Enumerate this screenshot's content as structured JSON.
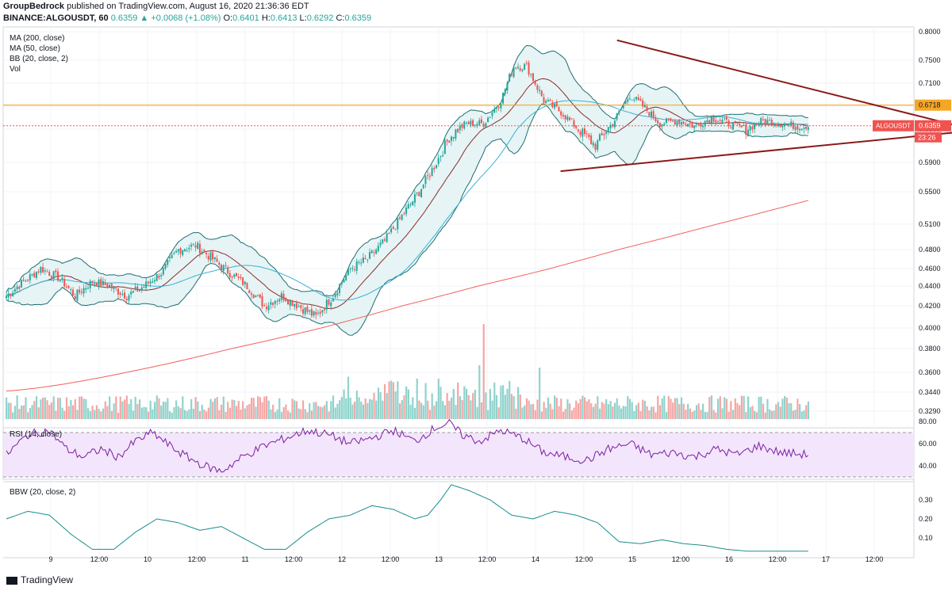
{
  "header": {
    "author": "GroupBedrock",
    "published_text": "published on TradingView.com, August 16, 2020 21:36:36 EDT",
    "symbol": "BINANCE:ALGOUSDT, 60",
    "last": "0.6359",
    "change": "▲ +0.0068 (+1.08%)",
    "o_label": "O:",
    "o_value": "0.6401",
    "h_label": "H:",
    "h_value": "0.6413",
    "l_label": "L:",
    "l_value": "0.6292",
    "c_label": "C:",
    "c_value": "0.6359"
  },
  "legend": [
    "MA (200, close)",
    "MA (50, close)",
    "BB (20, close, 2)",
    "Vol"
  ],
  "rsi_label": "RSI (14, close)",
  "bbw_label": "BBW (20, close, 2)",
  "footer": {
    "brand": "TradingView"
  },
  "colors": {
    "up": "#26a69a",
    "down": "#ef5350",
    "ma200": "#f0605a",
    "ma50": "#3bb0d6",
    "bb_basis": "#8e2b2b",
    "bb_band": "#1e6e72",
    "bb_fill": "#e6f4f5",
    "trend": "#8b1a1a",
    "resistance": "#f5a623",
    "rsi_fill": "#f3e5fb",
    "rsi_line": "#7b1fa2",
    "bbw_line": "#1a8c8c",
    "price_tag": "#ef5350"
  },
  "chart_data": {
    "type": "candlestick",
    "symbol": "ALGOUSDT",
    "interval": "60",
    "x_labels": [
      "9",
      "12:00",
      "10",
      "12:00",
      "11",
      "12:00",
      "12",
      "12:00",
      "13",
      "12:00",
      "14",
      "12:00",
      "15",
      "12:00",
      "16",
      "12:00",
      "17",
      "12:00"
    ],
    "price_scale_ticks": [
      "0.8000",
      "0.7500",
      "0.7100",
      "0.6700",
      "0.6300",
      "0.5900",
      "0.5500",
      "0.5100",
      "0.4800",
      "0.4600",
      "0.4400",
      "0.4200",
      "0.4000",
      "0.3800",
      "0.3600",
      "0.3440",
      "0.3290"
    ],
    "price_scale_values": [
      0.8,
      0.75,
      0.71,
      0.67,
      0.63,
      0.59,
      0.55,
      0.51,
      0.48,
      0.46,
      0.44,
      0.42,
      0.4,
      0.38,
      0.36,
      0.344,
      0.329
    ],
    "horizontal_line": {
      "label": "0.6718",
      "value": 0.6718
    },
    "last_price": {
      "symbol_label": "ALGOUSDT",
      "value_label": "0.6359",
      "value": 0.6359,
      "countdown": "23:26"
    },
    "close_anchors": [
      [
        0,
        0.43
      ],
      [
        8,
        0.445
      ],
      [
        16,
        0.46
      ],
      [
        24,
        0.45
      ],
      [
        32,
        0.43
      ],
      [
        40,
        0.445
      ],
      [
        48,
        0.44
      ],
      [
        56,
        0.43
      ],
      [
        64,
        0.44
      ],
      [
        72,
        0.455
      ],
      [
        80,
        0.48
      ],
      [
        88,
        0.485
      ],
      [
        96,
        0.47
      ],
      [
        104,
        0.455
      ],
      [
        112,
        0.44
      ],
      [
        120,
        0.42
      ],
      [
        128,
        0.43
      ],
      [
        136,
        0.42
      ],
      [
        144,
        0.41
      ],
      [
        152,
        0.43
      ],
      [
        160,
        0.46
      ],
      [
        168,
        0.47
      ],
      [
        176,
        0.49
      ],
      [
        184,
        0.52
      ],
      [
        192,
        0.55
      ],
      [
        200,
        0.59
      ],
      [
        206,
        0.62
      ],
      [
        214,
        0.64
      ],
      [
        222,
        0.64
      ],
      [
        230,
        0.68
      ],
      [
        236,
        0.74
      ],
      [
        242,
        0.74
      ],
      [
        250,
        0.68
      ],
      [
        258,
        0.66
      ],
      [
        266,
        0.63
      ],
      [
        274,
        0.61
      ],
      [
        282,
        0.64
      ],
      [
        290,
        0.69
      ],
      [
        296,
        0.67
      ],
      [
        304,
        0.64
      ],
      [
        312,
        0.645
      ],
      [
        320,
        0.635
      ],
      [
        328,
        0.65
      ],
      [
        336,
        0.64
      ],
      [
        344,
        0.63
      ],
      [
        352,
        0.645
      ],
      [
        360,
        0.64
      ],
      [
        368,
        0.635
      ],
      [
        373,
        0.636
      ]
    ],
    "trendline_upper": [
      [
        0.674,
        0.785
      ],
      [
        1.045,
        0.637
      ]
    ],
    "trendline_lower": [
      [
        0.612,
        0.578
      ],
      [
        1.045,
        0.626
      ]
    ],
    "rsi": {
      "ticks": [
        "80.00",
        "60.00",
        "40.00"
      ],
      "values": [
        80,
        60,
        40
      ],
      "upper": 70,
      "lower": 30,
      "anchors": [
        [
          0,
          50
        ],
        [
          10,
          68
        ],
        [
          20,
          72
        ],
        [
          28,
          55
        ],
        [
          36,
          48
        ],
        [
          44,
          55
        ],
        [
          52,
          48
        ],
        [
          60,
          62
        ],
        [
          68,
          70
        ],
        [
          76,
          58
        ],
        [
          84,
          48
        ],
        [
          92,
          40
        ],
        [
          100,
          35
        ],
        [
          110,
          48
        ],
        [
          120,
          58
        ],
        [
          130,
          65
        ],
        [
          140,
          72
        ],
        [
          150,
          68
        ],
        [
          160,
          60
        ],
        [
          170,
          65
        ],
        [
          180,
          72
        ],
        [
          190,
          62
        ],
        [
          200,
          75
        ],
        [
          206,
          78
        ],
        [
          212,
          68
        ],
        [
          220,
          62
        ],
        [
          230,
          72
        ],
        [
          240,
          65
        ],
        [
          250,
          52
        ],
        [
          260,
          48
        ],
        [
          270,
          45
        ],
        [
          280,
          55
        ],
        [
          290,
          60
        ],
        [
          300,
          50
        ],
        [
          310,
          52
        ],
        [
          320,
          48
        ],
        [
          330,
          55
        ],
        [
          340,
          50
        ],
        [
          350,
          58
        ],
        [
          360,
          52
        ],
        [
          373,
          50
        ]
      ]
    },
    "bbw": {
      "ticks": [
        "0.30",
        "0.20",
        "0.10"
      ],
      "values": [
        0.3,
        0.2,
        0.1
      ],
      "anchors": [
        [
          0,
          0.2
        ],
        [
          10,
          0.24
        ],
        [
          20,
          0.22
        ],
        [
          30,
          0.12
        ],
        [
          40,
          0.04
        ],
        [
          50,
          0.04
        ],
        [
          60,
          0.13
        ],
        [
          70,
          0.2
        ],
        [
          80,
          0.18
        ],
        [
          90,
          0.14
        ],
        [
          100,
          0.16
        ],
        [
          110,
          0.1
        ],
        [
          120,
          0.04
        ],
        [
          130,
          0.04
        ],
        [
          140,
          0.13
        ],
        [
          150,
          0.2
        ],
        [
          160,
          0.22
        ],
        [
          170,
          0.27
        ],
        [
          180,
          0.25
        ],
        [
          190,
          0.2
        ],
        [
          196,
          0.22
        ],
        [
          202,
          0.3
        ],
        [
          207,
          0.38
        ],
        [
          215,
          0.35
        ],
        [
          225,
          0.3
        ],
        [
          235,
          0.22
        ],
        [
          245,
          0.2
        ],
        [
          255,
          0.24
        ],
        [
          265,
          0.22
        ],
        [
          275,
          0.18
        ],
        [
          285,
          0.08
        ],
        [
          295,
          0.07
        ],
        [
          305,
          0.09
        ],
        [
          315,
          0.07
        ],
        [
          325,
          0.06
        ],
        [
          335,
          0.04
        ],
        [
          345,
          0.03
        ],
        [
          360,
          0.03
        ],
        [
          373,
          0.03
        ]
      ]
    }
  }
}
